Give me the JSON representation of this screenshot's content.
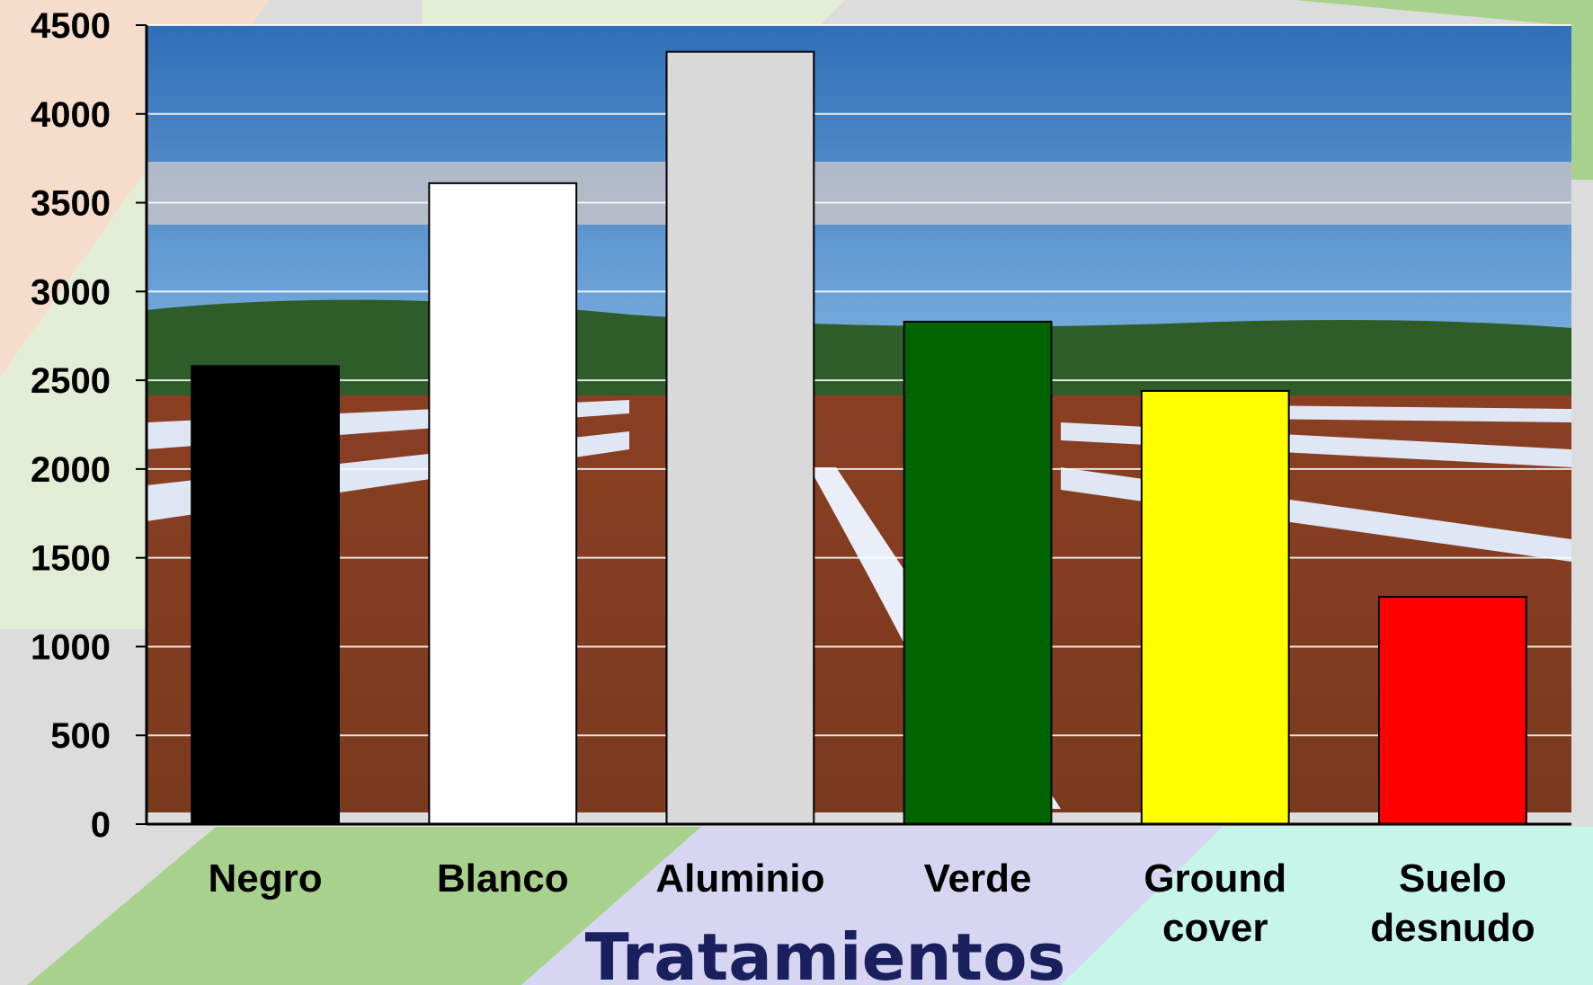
{
  "chart_data": {
    "type": "bar",
    "title": "",
    "xlabel": "Tratamientos",
    "ylabel": "",
    "ylim": [
      0,
      4500
    ],
    "yticks": [
      0,
      500,
      1000,
      1500,
      2000,
      2500,
      3000,
      3500,
      4000,
      4500
    ],
    "grid": true,
    "legend": "none",
    "categories": [
      [
        "Negro"
      ],
      [
        "Blanco"
      ],
      [
        "Aluminio"
      ],
      [
        "Verde"
      ],
      [
        "Ground",
        "cover"
      ],
      [
        "Suelo",
        "desnudo"
      ]
    ],
    "values": [
      2580,
      3610,
      4350,
      2830,
      2440,
      1280
    ],
    "colors": [
      "#000000",
      "#ffffff",
      "#d9d9d9",
      "#006400",
      "#ffff00",
      "#ff0000"
    ]
  }
}
